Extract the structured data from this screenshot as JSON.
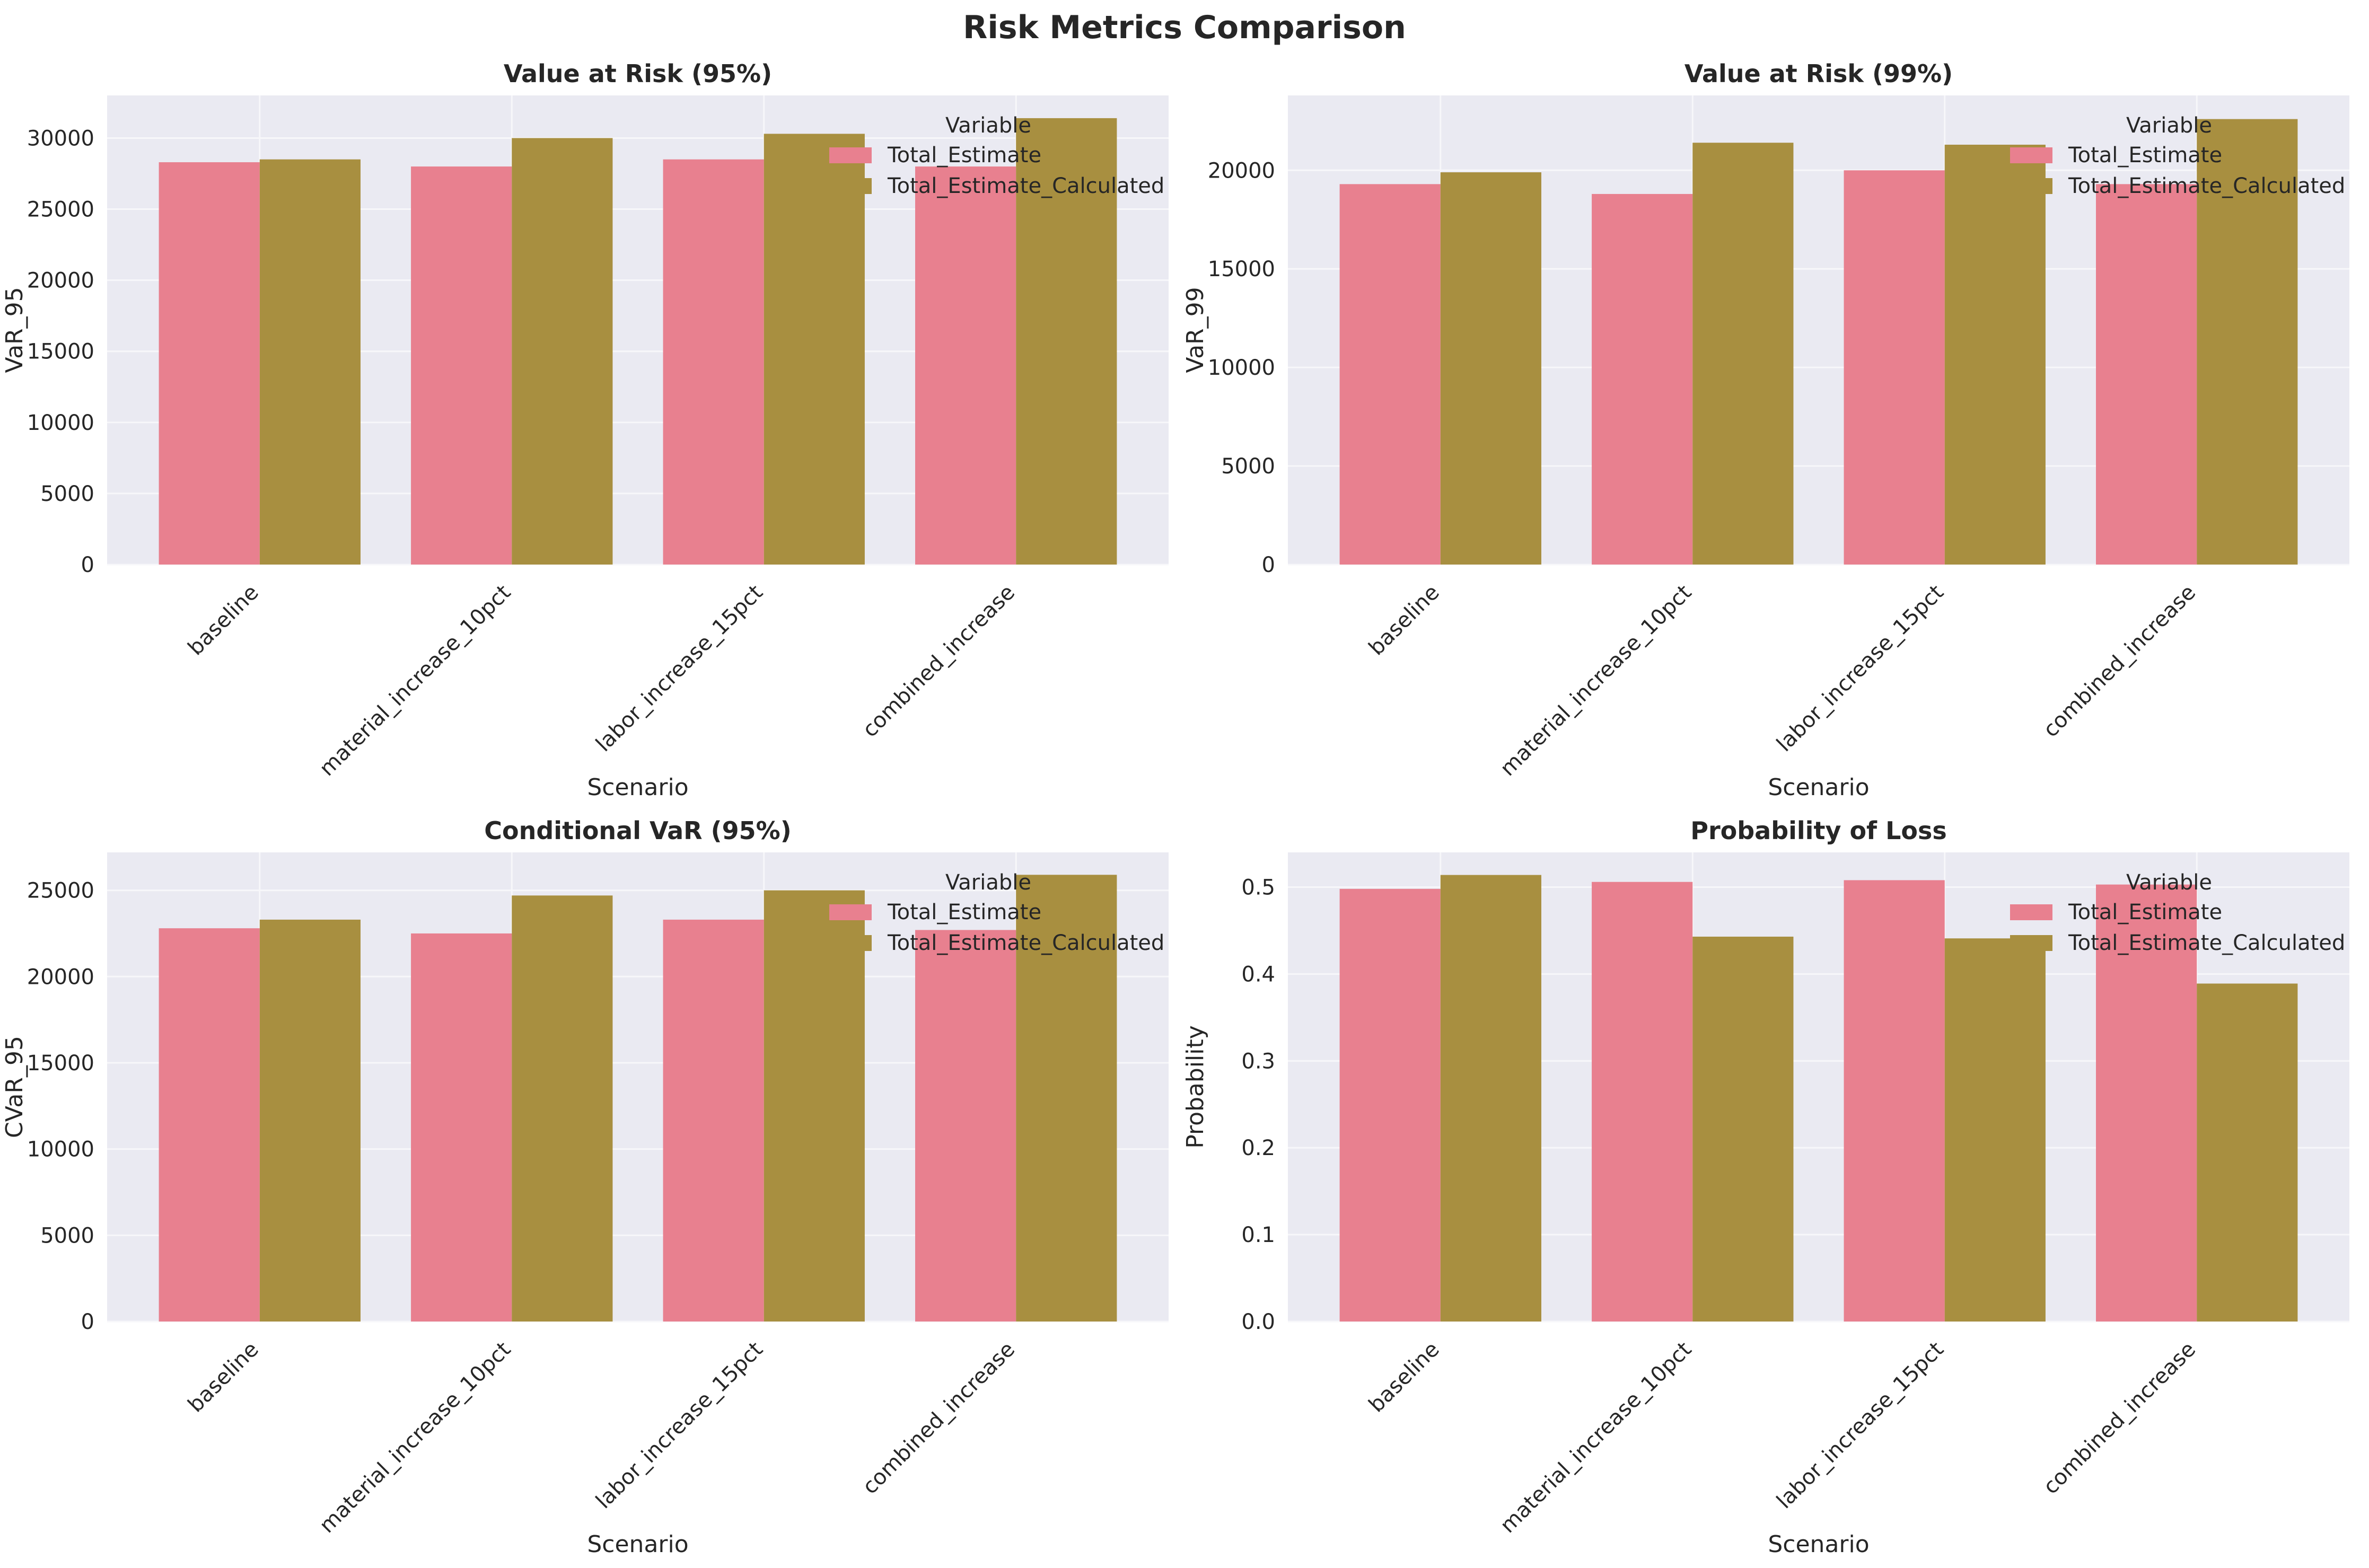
{
  "figure_title": "Risk Metrics Comparison",
  "colors": {
    "series_1": "#e8808f",
    "series_2": "#a88f40",
    "plot_bg": "#eaeaf2",
    "grid": "#f7f7fa",
    "text": "#262626"
  },
  "chart_data": [
    {
      "type": "bar",
      "title": "Value at Risk (95%)",
      "xlabel": "Scenario",
      "ylabel": "VaR_95",
      "categories": [
        "baseline",
        "material_increase_10pct",
        "labor_increase_15pct",
        "combined_increase"
      ],
      "series": [
        {
          "name": "Total_Estimate",
          "values": [
            28300,
            28000,
            28500,
            28000
          ]
        },
        {
          "name": "Total_Estimate_Calculated",
          "values": [
            28500,
            30000,
            30300,
            31400
          ]
        }
      ],
      "ylim": [
        0,
        33000
      ],
      "yticks": [
        0,
        5000,
        10000,
        15000,
        20000,
        25000,
        30000
      ],
      "ytick_labels": [
        "0",
        "5000",
        "10000",
        "15000",
        "20000",
        "25000",
        "30000"
      ],
      "legend_title": "Variable",
      "legend_position": "top-right",
      "grid": true
    },
    {
      "type": "bar",
      "title": "Value at Risk (99%)",
      "xlabel": "Scenario",
      "ylabel": "VaR_99",
      "categories": [
        "baseline",
        "material_increase_10pct",
        "labor_increase_15pct",
        "combined_increase"
      ],
      "series": [
        {
          "name": "Total_Estimate",
          "values": [
            19300,
            18800,
            20000,
            19300
          ]
        },
        {
          "name": "Total_Estimate_Calculated",
          "values": [
            19900,
            21400,
            21300,
            22600
          ]
        }
      ],
      "ylim": [
        0,
        23800
      ],
      "yticks": [
        0,
        5000,
        10000,
        15000,
        20000
      ],
      "ytick_labels": [
        "0",
        "5000",
        "10000",
        "15000",
        "20000"
      ],
      "legend_title": "Variable",
      "legend_position": "top-right",
      "grid": true
    },
    {
      "type": "bar",
      "title": "Conditional VaR (95%)",
      "xlabel": "Scenario",
      "ylabel": "CVaR_95",
      "categories": [
        "baseline",
        "material_increase_10pct",
        "labor_increase_15pct",
        "combined_increase"
      ],
      "series": [
        {
          "name": "Total_Estimate",
          "values": [
            22800,
            22500,
            23300,
            22700
          ]
        },
        {
          "name": "Total_Estimate_Calculated",
          "values": [
            23300,
            24700,
            25000,
            25900
          ]
        }
      ],
      "ylim": [
        0,
        27200
      ],
      "yticks": [
        0,
        5000,
        10000,
        15000,
        20000,
        25000
      ],
      "ytick_labels": [
        "0",
        "5000",
        "10000",
        "15000",
        "20000",
        "25000"
      ],
      "legend_title": "Variable",
      "legend_position": "top-right",
      "grid": true
    },
    {
      "type": "bar",
      "title": "Probability of Loss",
      "xlabel": "Scenario",
      "ylabel": "Probability",
      "categories": [
        "baseline",
        "material_increase_10pct",
        "labor_increase_15pct",
        "combined_increase"
      ],
      "series": [
        {
          "name": "Total_Estimate",
          "values": [
            0.498,
            0.506,
            0.508,
            0.503
          ]
        },
        {
          "name": "Total_Estimate_Calculated",
          "values": [
            0.514,
            0.443,
            0.441,
            0.389
          ]
        }
      ],
      "ylim": [
        0,
        0.54
      ],
      "yticks": [
        0,
        0.1,
        0.2,
        0.3,
        0.4,
        0.5
      ],
      "ytick_labels": [
        "0.0",
        "0.1",
        "0.2",
        "0.3",
        "0.4",
        "0.5"
      ],
      "legend_title": "Variable",
      "legend_position": "top-right",
      "grid": true
    }
  ]
}
